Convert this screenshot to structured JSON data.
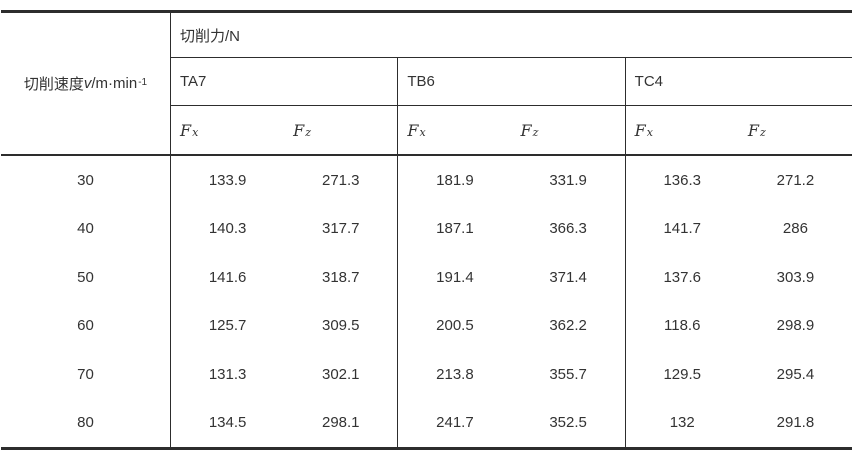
{
  "header": {
    "speed": {
      "prefix": "切削速度",
      "symbol": "v",
      "unit": "/m·min",
      "exponent": "-1"
    },
    "force_title": "切削力/N",
    "materials": [
      "TA7",
      "TB6",
      "TC4"
    ],
    "components": {
      "base": "F",
      "sub_x": "x",
      "sub_z": "z"
    }
  },
  "rows": [
    [
      "30",
      "133.9",
      "271.3",
      "181.9",
      "331.9",
      "136.3",
      "271.2"
    ],
    [
      "40",
      "140.3",
      "317.7",
      "187.1",
      "366.3",
      "141.7",
      "286"
    ],
    [
      "50",
      "141.6",
      "318.7",
      "191.4",
      "371.4",
      "137.6",
      "303.9"
    ],
    [
      "60",
      "125.7",
      "309.5",
      "200.5",
      "362.2",
      "118.6",
      "298.9"
    ],
    [
      "70",
      "131.3",
      "302.1",
      "213.8",
      "355.7",
      "129.5",
      "295.4"
    ],
    [
      "80",
      "134.5",
      "298.1",
      "241.7",
      "352.5",
      "132",
      "291.8"
    ]
  ],
  "colors": {
    "border": "#2d2d2d",
    "text": "#333333",
    "background": "#ffffff"
  },
  "chart_data": {
    "type": "table",
    "title": "切削力/N",
    "row_header": "切削速度v/m·min⁻¹",
    "column_groups": [
      "TA7",
      "TB6",
      "TC4"
    ],
    "sub_columns": [
      "Fx",
      "Fz"
    ],
    "speeds": [
      30,
      40,
      50,
      60,
      70,
      80
    ],
    "series": [
      {
        "name": "TA7 Fx",
        "values": [
          133.9,
          140.3,
          141.6,
          125.7,
          131.3,
          134.5
        ]
      },
      {
        "name": "TA7 Fz",
        "values": [
          271.3,
          317.7,
          318.7,
          309.5,
          302.1,
          298.1
        ]
      },
      {
        "name": "TB6 Fx",
        "values": [
          181.9,
          187.1,
          191.4,
          200.5,
          213.8,
          241.7
        ]
      },
      {
        "name": "TB6 Fz",
        "values": [
          331.9,
          366.3,
          371.4,
          362.2,
          355.7,
          352.5
        ]
      },
      {
        "name": "TC4 Fx",
        "values": [
          136.3,
          141.7,
          137.6,
          118.6,
          129.5,
          132
        ]
      },
      {
        "name": "TC4 Fz",
        "values": [
          271.2,
          286,
          303.9,
          298.9,
          295.4,
          291.8
        ]
      }
    ]
  }
}
